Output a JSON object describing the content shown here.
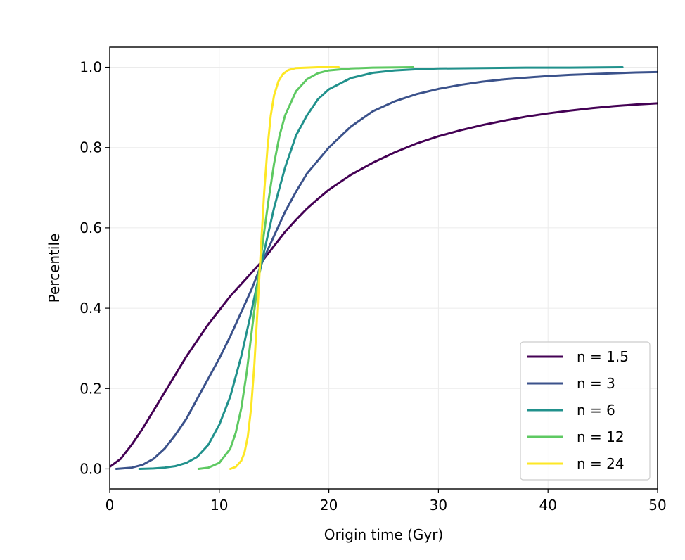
{
  "chart_data": {
    "type": "line",
    "title": "",
    "xlabel": "Origin time (Gyr)",
    "ylabel": "Percentile",
    "xlim": [
      0,
      50
    ],
    "ylim": [
      -0.05,
      1.05
    ],
    "xticks": [
      0,
      10,
      20,
      30,
      40,
      50
    ],
    "xtick_labels": [
      "0",
      "10",
      "20",
      "30",
      "40",
      "50"
    ],
    "yticks": [
      0.0,
      0.2,
      0.4,
      0.6,
      0.8,
      1.0
    ],
    "ytick_labels": [
      "0.0",
      "0.2",
      "0.4",
      "0.6",
      "0.8",
      "1.0"
    ],
    "grid": true,
    "legend_position": "bottom-right",
    "series": [
      {
        "name": "n = 1.5",
        "color": "#440154",
        "x": [
          0,
          1,
          2,
          3,
          4,
          5,
          6,
          7,
          8,
          9,
          10,
          11,
          12,
          13,
          14,
          15,
          16,
          17,
          18,
          19,
          20,
          22,
          24,
          26,
          28,
          30,
          32,
          34,
          36,
          38,
          40,
          42,
          44,
          46,
          48,
          50
        ],
        "y": [
          0.005,
          0.025,
          0.06,
          0.1,
          0.145,
          0.19,
          0.235,
          0.28,
          0.32,
          0.36,
          0.395,
          0.43,
          0.46,
          0.49,
          0.52,
          0.555,
          0.59,
          0.62,
          0.648,
          0.672,
          0.695,
          0.732,
          0.762,
          0.788,
          0.81,
          0.828,
          0.843,
          0.856,
          0.867,
          0.877,
          0.885,
          0.892,
          0.898,
          0.903,
          0.907,
          0.91
        ]
      },
      {
        "name": "n = 3",
        "color": "#3b528b",
        "x": [
          0.6,
          2,
          3,
          4,
          5,
          6,
          7,
          8,
          9,
          10,
          11,
          12,
          13,
          14,
          15,
          16,
          17,
          18,
          20,
          22,
          24,
          26,
          28,
          30,
          32,
          34,
          36,
          38,
          40,
          42,
          44,
          46,
          48,
          50
        ],
        "y": [
          0.0,
          0.003,
          0.01,
          0.025,
          0.05,
          0.085,
          0.125,
          0.175,
          0.225,
          0.275,
          0.33,
          0.39,
          0.45,
          0.52,
          0.58,
          0.64,
          0.69,
          0.735,
          0.8,
          0.852,
          0.89,
          0.915,
          0.933,
          0.946,
          0.956,
          0.964,
          0.97,
          0.974,
          0.978,
          0.981,
          0.983,
          0.985,
          0.987,
          0.988
        ]
      },
      {
        "name": "n = 6",
        "color": "#21918c",
        "x": [
          2.7,
          4,
          5,
          6,
          7,
          8,
          9,
          10,
          11,
          12,
          13,
          14,
          15,
          16,
          17,
          18,
          19,
          20,
          22,
          24,
          26,
          28,
          30,
          34,
          38,
          42,
          46.8
        ],
        "y": [
          0.0,
          0.001,
          0.003,
          0.007,
          0.015,
          0.03,
          0.06,
          0.11,
          0.18,
          0.28,
          0.4,
          0.53,
          0.65,
          0.75,
          0.83,
          0.88,
          0.92,
          0.945,
          0.973,
          0.986,
          0.992,
          0.995,
          0.997,
          0.998,
          0.999,
          0.999,
          1.0
        ]
      },
      {
        "name": "n = 12",
        "color": "#5ec962",
        "x": [
          8.1,
          9,
          10,
          11,
          11.5,
          12,
          12.5,
          13,
          13.5,
          14,
          14.5,
          15,
          15.5,
          16,
          17,
          18,
          19,
          20,
          22,
          24,
          27.7
        ],
        "y": [
          0.0,
          0.003,
          0.015,
          0.05,
          0.09,
          0.15,
          0.24,
          0.35,
          0.46,
          0.57,
          0.67,
          0.76,
          0.83,
          0.88,
          0.94,
          0.97,
          0.985,
          0.992,
          0.997,
          0.999,
          1.0
        ]
      },
      {
        "name": "n = 24",
        "color": "#fde725",
        "x": [
          11.0,
          11.5,
          12,
          12.3,
          12.6,
          12.9,
          13.2,
          13.5,
          13.8,
          14.1,
          14.4,
          14.7,
          15.0,
          15.4,
          15.8,
          16.3,
          17,
          18,
          19,
          20.9
        ],
        "y": [
          0.0,
          0.005,
          0.02,
          0.04,
          0.08,
          0.15,
          0.26,
          0.4,
          0.55,
          0.69,
          0.8,
          0.88,
          0.93,
          0.965,
          0.983,
          0.993,
          0.998,
          0.999,
          1.0,
          1.0
        ]
      }
    ]
  }
}
